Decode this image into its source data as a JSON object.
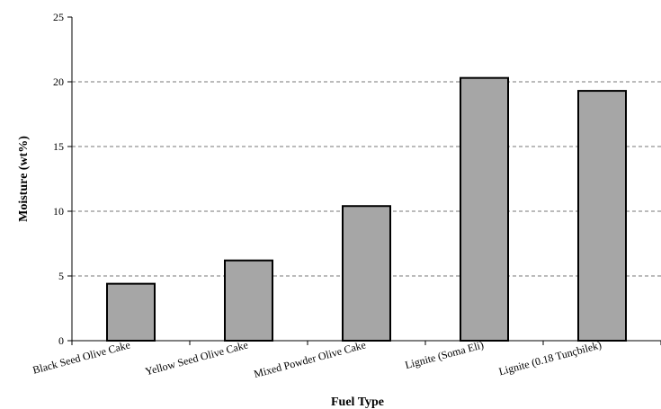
{
  "chart_data": {
    "type": "bar",
    "title": "",
    "xlabel": "Fuel Type",
    "ylabel": "Moisture (wt%)",
    "categories": [
      "Black  Seed Olive Cake",
      "Yellow Seed Olive Cake",
      "Mixed Powder Olive Cake",
      "Lignite (Soma Eli)",
      "Lignite (0.18 Tunçbilek)"
    ],
    "values": [
      4.4,
      6.2,
      10.4,
      20.3,
      19.3
    ],
    "ylim": [
      0,
      25
    ],
    "yticks": [
      0,
      5,
      10,
      15,
      20,
      25
    ],
    "grid": "horizontal-dashed",
    "legend": "none",
    "bar_color": "#a6a6a6",
    "bar_edge_color": "#000000",
    "grid_color": "#777777"
  }
}
